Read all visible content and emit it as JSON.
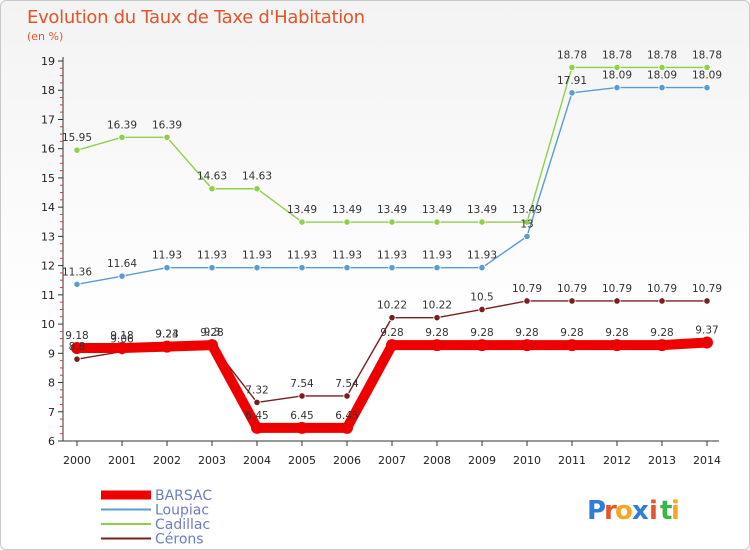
{
  "chart_data": {
    "type": "line",
    "title": "Evolution du Taux de Taxe d'Habitation",
    "subtitle": "(en %)",
    "x": [
      "2000",
      "2001",
      "2002",
      "2003",
      "2004",
      "2005",
      "2006",
      "2007",
      "2008",
      "2009",
      "2010",
      "2011",
      "2012",
      "2013",
      "2014"
    ],
    "ylim": [
      6,
      19
    ],
    "yticks": [
      6,
      7,
      8,
      9,
      10,
      11,
      12,
      13,
      14,
      15,
      16,
      17,
      18,
      19
    ],
    "grid": false,
    "legend_position": "bottom-left",
    "series": [
      {
        "name": "BARSAC",
        "color": "#ee0000",
        "values": [
          9.18,
          9.18,
          9.23,
          9.28,
          6.45,
          6.45,
          6.45,
          9.28,
          9.28,
          9.28,
          9.28,
          9.28,
          9.28,
          9.28,
          9.37
        ],
        "labels": [
          "9.18",
          "9.18",
          "9.23",
          "9.28",
          "6.45",
          "6.45",
          "6.45",
          "9.28",
          "9.28",
          "9.28",
          "9.28",
          "9.28",
          "9.28",
          "9.28",
          "9.37"
        ]
      },
      {
        "name": "Loupiac",
        "color": "#5b9bd5",
        "values": [
          11.36,
          11.64,
          11.93,
          11.93,
          11.93,
          11.93,
          11.93,
          11.93,
          11.93,
          11.93,
          13,
          17.91,
          18.09,
          18.09,
          18.09
        ],
        "labels": [
          "11.36",
          "11.64",
          "11.93",
          "11.93",
          "11.93",
          "11.93",
          "11.93",
          "11.93",
          "11.93",
          "11.93",
          "13",
          "17.91",
          "18.09",
          "18.09",
          "18.09"
        ]
      },
      {
        "name": "Cadillac",
        "color": "#8ed04a",
        "values": [
          15.95,
          16.39,
          16.39,
          14.63,
          14.63,
          13.49,
          13.49,
          13.49,
          13.49,
          13.49,
          13.49,
          18.78,
          18.78,
          18.78,
          18.78
        ],
        "labels": [
          "15.95",
          "16.39",
          "16.39",
          "14.63",
          "14.63",
          "13.49",
          "13.49",
          "13.49",
          "13.49",
          "13.49",
          "13.49",
          "18.78",
          "18.78",
          "18.78",
          "18.78"
        ]
      },
      {
        "name": "Cérons",
        "color": "#7a1f1f",
        "values": [
          8.8,
          9.06,
          9.24,
          9.3,
          7.32,
          7.54,
          7.54,
          10.22,
          10.22,
          10.5,
          10.79,
          10.79,
          10.79,
          10.79,
          10.79
        ],
        "labels": [
          "8.8",
          "9.06",
          "9.24",
          "9.3",
          "7.32",
          "7.54",
          "7.54",
          "10.22",
          "10.22",
          "10.5",
          "10.79",
          "10.79",
          "10.79",
          "10.79",
          "10.79"
        ]
      }
    ]
  },
  "logo": {
    "letters": [
      "P",
      "r",
      "o",
      "x",
      "i",
      "t",
      "i"
    ],
    "colors": [
      "#2f7fd8",
      "#e8532c",
      "#f5a623",
      "#2f7fd8",
      "#e8532c",
      "#3ab54a",
      "#f5a623"
    ]
  }
}
